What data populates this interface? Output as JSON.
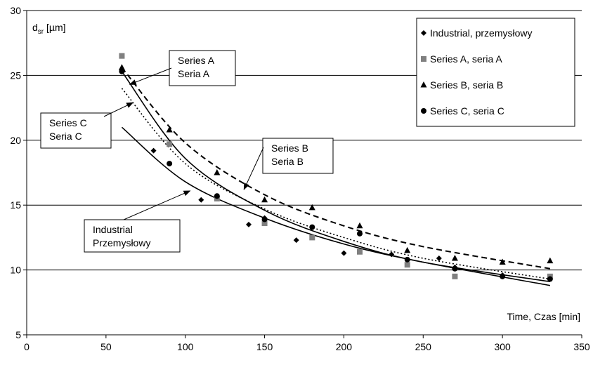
{
  "chart_data": {
    "type": "scatter",
    "ylabel": {
      "main": "d",
      "sub": "sr",
      "unit": " [µm]"
    },
    "xlabel": "Time, Czas [min]",
    "xlim": [
      0,
      350
    ],
    "ylim": [
      5,
      30
    ],
    "x_ticks": [
      0,
      50,
      100,
      150,
      200,
      250,
      300,
      350
    ],
    "y_ticks": [
      5,
      10,
      15,
      20,
      25,
      30
    ],
    "grid": "horizontal",
    "legend_position": "top-right",
    "series": [
      {
        "name": "Industrial, przemysłowy",
        "marker": "diamond",
        "points": [
          [
            60,
            25.4
          ],
          [
            80,
            19.2
          ],
          [
            110,
            15.4
          ],
          [
            140,
            13.5
          ],
          [
            150,
            14.0
          ],
          [
            170,
            12.3
          ],
          [
            200,
            11.3
          ],
          [
            230,
            11.2
          ],
          [
            260,
            10.9
          ],
          [
            270,
            10.2
          ],
          [
            300,
            9.6
          ],
          [
            330,
            9.4
          ]
        ]
      },
      {
        "name": "Series A, seria A",
        "marker": "square",
        "points": [
          [
            60,
            26.5
          ],
          [
            90,
            19.7
          ],
          [
            120,
            15.5
          ],
          [
            150,
            13.6
          ],
          [
            180,
            12.5
          ],
          [
            210,
            11.4
          ],
          [
            240,
            10.4
          ],
          [
            270,
            9.5
          ],
          [
            330,
            9.5
          ]
        ]
      },
      {
        "name": "Series  B, seria B",
        "marker": "triangle",
        "points": [
          [
            60,
            25.6
          ],
          [
            90,
            20.8
          ],
          [
            120,
            17.5
          ],
          [
            150,
            15.4
          ],
          [
            180,
            14.8
          ],
          [
            210,
            13.4
          ],
          [
            240,
            11.5
          ],
          [
            270,
            10.9
          ],
          [
            300,
            10.6
          ],
          [
            330,
            10.7
          ]
        ]
      },
      {
        "name": "Series C, seria C",
        "marker": "circle",
        "points": [
          [
            60,
            25.3
          ],
          [
            90,
            18.2
          ],
          [
            120,
            15.7
          ],
          [
            150,
            13.9
          ],
          [
            180,
            13.3
          ],
          [
            210,
            12.8
          ],
          [
            240,
            10.8
          ],
          [
            270,
            10.1
          ],
          [
            300,
            9.5
          ],
          [
            330,
            9.3
          ]
        ]
      }
    ],
    "trend_lines": [
      {
        "label": "Industrial",
        "style": "solid",
        "curve": [
          [
            60,
            21.0
          ],
          [
            100,
            16.8
          ],
          [
            150,
            14.0
          ],
          [
            200,
            12.0
          ],
          [
            250,
            10.6
          ],
          [
            330,
            8.8
          ]
        ]
      },
      {
        "label": "Series A",
        "style": "solid",
        "curve": [
          [
            60,
            25.3
          ],
          [
            100,
            18.6
          ],
          [
            150,
            14.6
          ],
          [
            200,
            12.2
          ],
          [
            250,
            10.6
          ],
          [
            330,
            9.1
          ]
        ]
      },
      {
        "label": "Series B",
        "style": "dashed",
        "curve": [
          [
            60,
            25.6
          ],
          [
            100,
            19.8
          ],
          [
            150,
            15.8
          ],
          [
            200,
            13.4
          ],
          [
            250,
            11.8
          ],
          [
            330,
            10.1
          ]
        ]
      },
      {
        "label": "Series C",
        "style": "dotted",
        "curve": [
          [
            60,
            24.0
          ],
          [
            100,
            18.2
          ],
          [
            150,
            14.7
          ],
          [
            200,
            12.5
          ],
          [
            250,
            10.9
          ],
          [
            330,
            9.3
          ]
        ]
      }
    ],
    "annotations": [
      {
        "line1": "Series A",
        "line2": "Seria A",
        "arrow_to": [
          65,
          24.3
        ]
      },
      {
        "line1": "Series C",
        "line2": "Seria C",
        "arrow_to": [
          67,
          22.9
        ]
      },
      {
        "line1": "Series B",
        "line2": "Seria B",
        "arrow_to": [
          137,
          16.2
        ]
      },
      {
        "line1": "Industrial",
        "line2": "Przemysłowy",
        "arrow_to": [
          103,
          16.1
        ]
      }
    ]
  }
}
